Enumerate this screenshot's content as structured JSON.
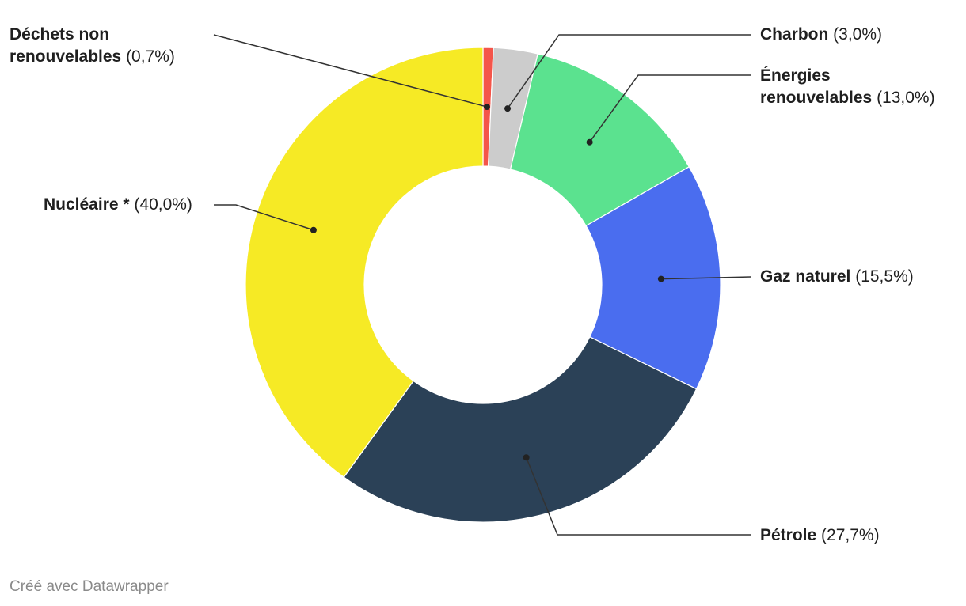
{
  "chart_data": {
    "type": "pie",
    "donut": true,
    "start_angle_deg": 0,
    "direction": "clockwise",
    "slices": [
      {
        "name": "Déchets non renouvelables",
        "label_lines": [
          "Déchets non",
          "renouvelables"
        ],
        "percent_label": "(0,7%)",
        "value": 0.7,
        "color": "#f4554a"
      },
      {
        "name": "Charbon",
        "label_lines": [
          "Charbon"
        ],
        "percent_label": "(3,0%)",
        "value": 3.0,
        "color": "#cccccc"
      },
      {
        "name": "Énergies renouvelables",
        "label_lines": [
          "Énergies",
          "renouvelables"
        ],
        "percent_label": "(13,0%)",
        "value": 13.0,
        "color": "#5be28f"
      },
      {
        "name": "Gaz naturel",
        "label_lines": [
          "Gaz naturel"
        ],
        "percent_label": "(15,5%)",
        "value": 15.5,
        "color": "#4a6def"
      },
      {
        "name": "Pétrole",
        "label_lines": [
          "Pétrole"
        ],
        "percent_label": "(27,7%)",
        "value": 27.7,
        "color": "#2b4157"
      },
      {
        "name": "Nucléaire *",
        "label_lines": [
          "Nucléaire *"
        ],
        "percent_label": "(40,0%)",
        "value": 40.0,
        "color": "#f6ea25"
      }
    ]
  },
  "footer": {
    "credit": "Créé avec Datawrapper"
  }
}
